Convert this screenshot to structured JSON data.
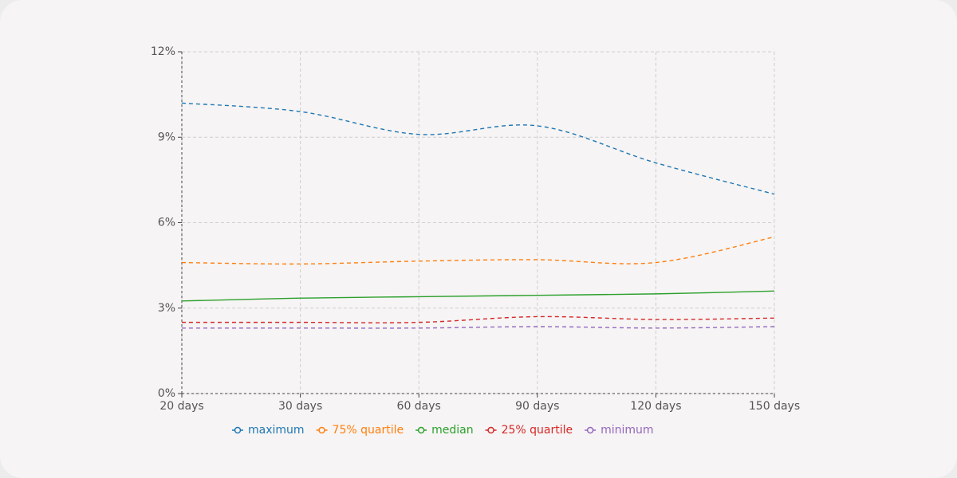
{
  "chart_data": {
    "type": "line",
    "categories": [
      "20 days",
      "30 days",
      "60 days",
      "90 days",
      "120 days",
      "150 days"
    ],
    "series": [
      {
        "name": "maximum",
        "color": "#1f77b4",
        "style": "dashed",
        "values": [
          10.2,
          9.9,
          9.1,
          9.4,
          8.1,
          7.0
        ]
      },
      {
        "name": "75% quartile",
        "color": "#ff7f0e",
        "style": "dashed",
        "values": [
          4.6,
          4.55,
          4.65,
          4.7,
          4.6,
          5.5
        ]
      },
      {
        "name": "median",
        "color": "#2ca02c",
        "style": "solid",
        "values": [
          3.25,
          3.35,
          3.4,
          3.45,
          3.5,
          3.6
        ]
      },
      {
        "name": "25% quartile",
        "color": "#d62728",
        "style": "dashed",
        "values": [
          2.5,
          2.5,
          2.5,
          2.7,
          2.6,
          2.65
        ]
      },
      {
        "name": "minimum",
        "color": "#9467bd",
        "style": "dashed",
        "values": [
          2.3,
          2.3,
          2.3,
          2.35,
          2.3,
          2.35
        ]
      }
    ],
    "ylim": [
      0,
      12
    ],
    "yticks": [
      {
        "value": 0,
        "label": "0%"
      },
      {
        "value": 3,
        "label": "3%"
      },
      {
        "value": 6,
        "label": "6%"
      },
      {
        "value": 9,
        "label": "9%"
      },
      {
        "value": 12,
        "label": "12%"
      }
    ],
    "grid": true
  }
}
